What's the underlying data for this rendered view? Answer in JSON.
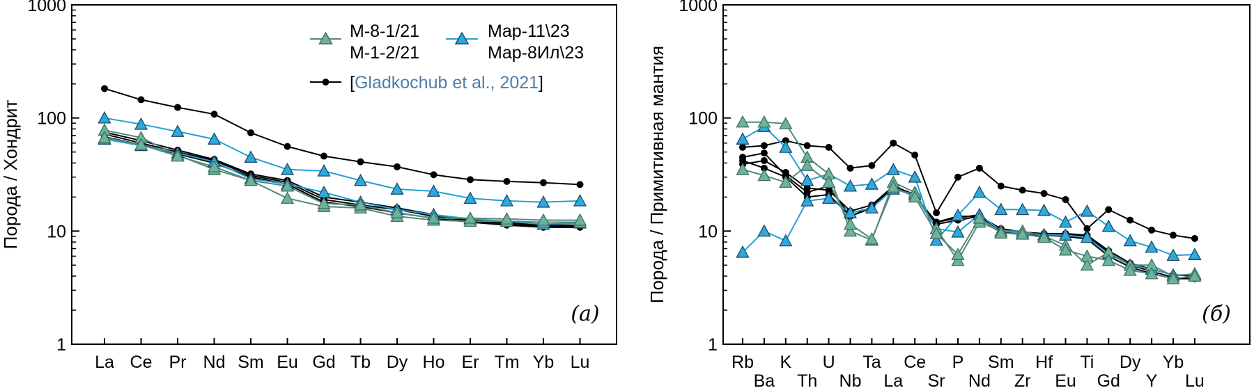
{
  "colors": {
    "green_line": "#55897a",
    "green_fill": "#6db39b",
    "blue_line": "#1fa2d6",
    "blue_fill": "#2fa8dc",
    "black": "#000000",
    "citation_text": "#4d7ea8"
  },
  "chart_data": [
    {
      "type": "line",
      "panel_label": "(а)",
      "ylabel": "Порода / Хондрит",
      "xlabel": "",
      "yscale": "log",
      "ylim": [
        1,
        1000
      ],
      "yticks": [
        "1",
        "10",
        "100",
        "1000"
      ],
      "categories": [
        "La",
        "Ce",
        "Pr",
        "Nd",
        "Sm",
        "Eu",
        "Gd",
        "Tb",
        "Dy",
        "Ho",
        "Er",
        "Tm",
        "Yb",
        "Lu"
      ],
      "legend": {
        "position": "top-right",
        "entries": [
          {
            "group": "green",
            "marker": "triangle",
            "lines": [
              "M-8-1/21",
              "M-1-2/21"
            ]
          },
          {
            "group": "blue",
            "marker": "triangle",
            "lines": [
              "Map-11\\23",
              "Map-8Ил\\23"
            ]
          },
          {
            "group": "black",
            "marker": "circle",
            "prefix": "[",
            "citation": "Gladkochub et al., 2021",
            "suffix": "]"
          }
        ]
      },
      "series": [
        {
          "group": "black",
          "values": [
            182,
            145,
            124,
            108,
            74,
            56,
            46,
            41,
            37,
            31.5,
            28.5,
            27.5,
            26.8,
            25.8
          ]
        },
        {
          "group": "black",
          "values": [
            72,
            60,
            50,
            42,
            31,
            27,
            19,
            17,
            15.5,
            13.5,
            12.3,
            11.6,
            11,
            11
          ]
        },
        {
          "group": "black",
          "values": [
            68,
            58,
            48,
            40,
            30,
            26,
            18,
            16.5,
            14.5,
            13,
            12,
            11.3,
            10.8,
            10.8
          ]
        },
        {
          "group": "black",
          "values": [
            75,
            63,
            52,
            43,
            32,
            28,
            20,
            18,
            16,
            14,
            12.6,
            11.9,
            11.3,
            11.3
          ]
        },
        {
          "group": "blue",
          "values": [
            100,
            88,
            76,
            65,
            45,
            35,
            34,
            28,
            23.5,
            22.5,
            19.5,
            18.5,
            18,
            18.5
          ]
        },
        {
          "group": "blue",
          "values": [
            65,
            57,
            49,
            41,
            29,
            26,
            22,
            18,
            15.5,
            14,
            12.8,
            12.2,
            11.5,
            11.8
          ]
        },
        {
          "group": "green",
          "values": [
            78,
            67,
            47,
            35,
            28,
            19.5,
            16.5,
            16,
            13.5,
            12.5,
            12.2,
            12.2,
            12,
            12
          ]
        },
        {
          "group": "green",
          "values": [
            67,
            58,
            46,
            37,
            28,
            25,
            17.5,
            17,
            14.5,
            13,
            13,
            12.8,
            12.5,
            12.5
          ]
        }
      ]
    },
    {
      "type": "line",
      "panel_label": "(б)",
      "ylabel": "Порода / Примитивная мантия",
      "xlabel": "",
      "yscale": "log",
      "ylim": [
        1,
        1000
      ],
      "yticks": [
        "1",
        "10",
        "100",
        "1000"
      ],
      "categories": [
        "Rb",
        "Ba",
        "K",
        "Th",
        "U",
        "Nb",
        "Ta",
        "La",
        "Ce",
        "Sr",
        "P",
        "Nd",
        "Sm",
        "Zr",
        "Hf",
        "Eu",
        "Ti",
        "Gd",
        "Dy",
        "Y",
        "Yb",
        "Lu"
      ],
      "series": [
        {
          "group": "black",
          "values": [
            55,
            57,
            63,
            57,
            55,
            36,
            38,
            60,
            47,
            14.5,
            30,
            36,
            25,
            23,
            21.5,
            19,
            10.5,
            15.5,
            12.5,
            10.2,
            9.2,
            8.6
          ]
        },
        {
          "group": "black",
          "values": [
            45,
            49,
            31,
            22,
            25,
            13.5,
            16,
            24,
            20.5,
            12,
            13,
            14,
            10,
            9.5,
            9.3,
            9.3,
            9,
            6.5,
            5,
            4.4,
            3.9,
            3.8
          ]
        },
        {
          "group": "black",
          "values": [
            42,
            36,
            30,
            20,
            21,
            13.5,
            16.5,
            24,
            20.5,
            12,
            13.5,
            13.5,
            10,
            9.2,
            9.2,
            9,
            8.5,
            6,
            4.8,
            4.2,
            3.8,
            3.8
          ]
        },
        {
          "group": "black",
          "values": [
            39,
            42,
            33,
            24,
            23,
            15,
            17,
            25,
            21,
            11.5,
            12.5,
            13.5,
            10.5,
            9.8,
            9.5,
            9.5,
            9.2,
            6.7,
            5.2,
            4.6,
            4.1,
            4
          ]
        },
        {
          "group": "blue",
          "values": [
            65,
            84,
            55,
            28,
            32,
            25,
            26,
            35,
            30,
            8.3,
            13.8,
            22,
            15.5,
            15.5,
            15.2,
            12,
            15,
            11,
            8.2,
            7.2,
            6.1,
            6.2
          ]
        },
        {
          "group": "blue",
          "values": [
            6.5,
            10,
            8.2,
            18.5,
            19.5,
            14.5,
            16,
            23.5,
            21,
            10.5,
            9.8,
            14,
            10,
            9.6,
            9.3,
            9.2,
            8.8,
            6.3,
            5,
            4.6,
            4.1,
            4.1
          ]
        },
        {
          "group": "green",
          "values": [
            92,
            92,
            89,
            45,
            32,
            10,
            8.3,
            27,
            22,
            10.5,
            5.5,
            12,
            10,
            10,
            9,
            7.5,
            5,
            6.5,
            5,
            5,
            4,
            4.2
          ]
        },
        {
          "group": "green",
          "values": [
            35,
            31,
            27,
            38,
            27,
            11.5,
            8.5,
            24.5,
            20,
            9.5,
            6.2,
            13,
            9.6,
            9.4,
            8.8,
            6.8,
            6,
            5.5,
            4.5,
            4.2,
            3.8,
            4
          ]
        }
      ]
    }
  ]
}
